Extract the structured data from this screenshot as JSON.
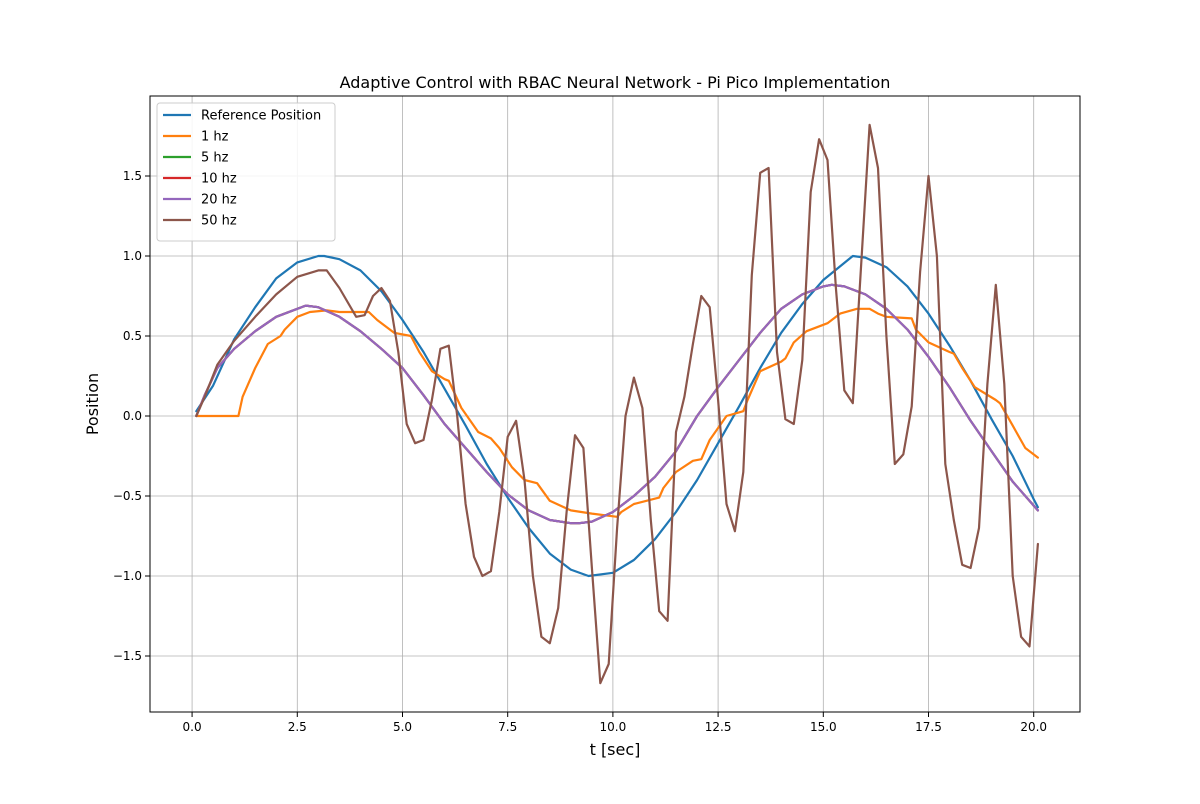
{
  "chart_data": {
    "type": "line",
    "title": "Adaptive Control with RBAC Neural Network - Pi Pico Implementation",
    "xlabel": "t [sec]",
    "ylabel": "Position",
    "xlim": [
      -1.0,
      21.1
    ],
    "ylim": [
      -1.85,
      2.0
    ],
    "xticks": [
      0.0,
      2.5,
      5.0,
      7.5,
      10.0,
      12.5,
      15.0,
      17.5,
      20.0
    ],
    "xtick_labels": [
      "0.0",
      "2.5",
      "5.0",
      "7.5",
      "10.0",
      "12.5",
      "15.0",
      "17.5",
      "20.0"
    ],
    "yticks": [
      -1.5,
      -1.0,
      -0.5,
      0.0,
      0.5,
      1.0,
      1.5
    ],
    "ytick_labels": [
      "−1.5",
      "−1.0",
      "−0.5",
      "0.0",
      "0.5",
      "1.0",
      "1.5"
    ],
    "grid": true,
    "legend": "upper-left",
    "series": [
      {
        "name": "Reference Position",
        "color": "#1f77b4",
        "x": [
          0.1,
          0.5,
          1.0,
          1.5,
          2.0,
          2.5,
          3.0,
          3.14,
          3.5,
          4.0,
          4.5,
          5.0,
          5.5,
          6.0,
          6.5,
          7.0,
          7.5,
          8.0,
          8.5,
          9.0,
          9.42,
          10.0,
          10.5,
          11.0,
          11.5,
          12.0,
          12.5,
          13.0,
          13.5,
          14.0,
          14.5,
          15.0,
          15.7,
          16.0,
          16.5,
          17.0,
          17.5,
          18.0,
          18.5,
          19.0,
          19.5,
          20.0,
          20.1
        ],
        "y": [
          0.03,
          0.19,
          0.48,
          0.68,
          0.86,
          0.96,
          1.0,
          1.0,
          0.98,
          0.91,
          0.78,
          0.6,
          0.4,
          0.17,
          -0.06,
          -0.3,
          -0.51,
          -0.7,
          -0.86,
          -0.96,
          -1.0,
          -0.98,
          -0.9,
          -0.77,
          -0.6,
          -0.4,
          -0.17,
          0.06,
          0.3,
          0.52,
          0.7,
          0.85,
          1.0,
          0.99,
          0.93,
          0.81,
          0.64,
          0.44,
          0.22,
          -0.02,
          -0.25,
          -0.52,
          -0.57
        ]
      },
      {
        "name": "1 hz",
        "color": "#ff7f0e",
        "x": [
          0.1,
          1.1,
          1.2,
          1.5,
          1.8,
          2.1,
          2.2,
          2.5,
          2.8,
          3.2,
          3.5,
          4.0,
          4.2,
          4.4,
          4.8,
          5.2,
          5.4,
          5.7,
          6.0,
          6.1,
          6.4,
          6.8,
          7.1,
          7.3,
          7.6,
          7.9,
          8.2,
          8.5,
          9.0,
          9.5,
          10.1,
          10.2,
          10.5,
          11.1,
          11.2,
          11.5,
          11.9,
          12.1,
          12.3,
          12.7,
          13.1,
          13.2,
          13.5,
          14.0,
          14.1,
          14.3,
          14.6,
          15.0,
          15.1,
          15.4,
          15.8,
          16.1,
          16.3,
          16.5,
          17.1,
          17.2,
          17.5,
          18.0,
          18.1,
          18.3,
          18.6,
          19.1,
          19.2,
          19.5,
          19.8,
          20.1
        ],
        "y": [
          0.0,
          0.0,
          0.12,
          0.3,
          0.45,
          0.5,
          0.54,
          0.62,
          0.65,
          0.66,
          0.65,
          0.65,
          0.65,
          0.6,
          0.52,
          0.5,
          0.4,
          0.28,
          0.23,
          0.22,
          0.05,
          -0.1,
          -0.14,
          -0.2,
          -0.32,
          -0.4,
          -0.42,
          -0.53,
          -0.59,
          -0.61,
          -0.63,
          -0.6,
          -0.55,
          -0.51,
          -0.45,
          -0.35,
          -0.28,
          -0.27,
          -0.15,
          0.0,
          0.03,
          0.1,
          0.28,
          0.34,
          0.36,
          0.46,
          0.53,
          0.57,
          0.58,
          0.64,
          0.67,
          0.67,
          0.64,
          0.62,
          0.61,
          0.54,
          0.46,
          0.4,
          0.39,
          0.3,
          0.18,
          0.1,
          0.08,
          -0.06,
          -0.2,
          -0.26
        ]
      },
      {
        "name": "5 hz",
        "color": "#2ca02c",
        "x": [
          0.1,
          0.3,
          0.6,
          1.0,
          1.5,
          2.0,
          2.7,
          3.0,
          3.5,
          4.0,
          4.5,
          5.0,
          5.5,
          6.0,
          6.5,
          7.0,
          7.5,
          8.0,
          8.5,
          9.0,
          9.2,
          9.5,
          10.0,
          10.5,
          11.0,
          11.5,
          12.0,
          12.5,
          13.0,
          13.5,
          14.0,
          14.5,
          15.0,
          15.2,
          15.5,
          16.0,
          16.5,
          17.0,
          17.5,
          18.0,
          18.5,
          19.0,
          19.5,
          20.1
        ],
        "y": [
          0.0,
          0.13,
          0.3,
          0.42,
          0.53,
          0.62,
          0.69,
          0.68,
          0.62,
          0.53,
          0.42,
          0.3,
          0.13,
          -0.05,
          -0.2,
          -0.35,
          -0.49,
          -0.59,
          -0.65,
          -0.67,
          -0.67,
          -0.66,
          -0.6,
          -0.5,
          -0.38,
          -0.22,
          0.0,
          0.18,
          0.35,
          0.52,
          0.67,
          0.76,
          0.81,
          0.82,
          0.81,
          0.76,
          0.67,
          0.54,
          0.37,
          0.18,
          -0.03,
          -0.22,
          -0.41,
          -0.59
        ]
      },
      {
        "name": "10 hz",
        "color": "#d62728",
        "x": [
          0.1,
          0.3,
          0.6,
          1.0,
          1.5,
          2.0,
          2.7,
          3.0,
          3.5,
          4.0,
          4.5,
          5.0,
          5.5,
          6.0,
          6.5,
          7.0,
          7.5,
          8.0,
          8.5,
          9.0,
          9.2,
          9.5,
          10.0,
          10.5,
          11.0,
          11.5,
          12.0,
          12.5,
          13.0,
          13.5,
          14.0,
          14.5,
          15.0,
          15.2,
          15.5,
          16.0,
          16.5,
          17.0,
          17.5,
          18.0,
          18.5,
          19.0,
          19.5,
          20.1
        ],
        "y": [
          0.0,
          0.13,
          0.3,
          0.42,
          0.53,
          0.62,
          0.69,
          0.68,
          0.62,
          0.53,
          0.42,
          0.3,
          0.13,
          -0.05,
          -0.2,
          -0.35,
          -0.49,
          -0.59,
          -0.65,
          -0.67,
          -0.67,
          -0.66,
          -0.6,
          -0.5,
          -0.38,
          -0.22,
          0.0,
          0.18,
          0.35,
          0.52,
          0.67,
          0.76,
          0.81,
          0.82,
          0.81,
          0.76,
          0.67,
          0.54,
          0.37,
          0.18,
          -0.03,
          -0.22,
          -0.41,
          -0.59
        ]
      },
      {
        "name": "20 hz",
        "color": "#9467bd",
        "x": [
          0.1,
          0.3,
          0.6,
          1.0,
          1.5,
          2.0,
          2.7,
          3.0,
          3.5,
          4.0,
          4.5,
          5.0,
          5.5,
          6.0,
          6.5,
          7.0,
          7.5,
          8.0,
          8.5,
          9.0,
          9.2,
          9.5,
          10.0,
          10.5,
          11.0,
          11.5,
          12.0,
          12.5,
          13.0,
          13.5,
          14.0,
          14.5,
          15.0,
          15.2,
          15.5,
          16.0,
          16.5,
          17.0,
          17.5,
          18.0,
          18.5,
          19.0,
          19.5,
          20.1
        ],
        "y": [
          0.0,
          0.13,
          0.3,
          0.42,
          0.53,
          0.62,
          0.69,
          0.68,
          0.62,
          0.53,
          0.42,
          0.3,
          0.13,
          -0.05,
          -0.2,
          -0.35,
          -0.49,
          -0.59,
          -0.65,
          -0.67,
          -0.67,
          -0.66,
          -0.6,
          -0.5,
          -0.38,
          -0.22,
          0.0,
          0.18,
          0.35,
          0.52,
          0.67,
          0.76,
          0.81,
          0.82,
          0.81,
          0.76,
          0.67,
          0.54,
          0.37,
          0.18,
          -0.03,
          -0.22,
          -0.41,
          -0.59
        ]
      },
      {
        "name": "50 hz",
        "color": "#8c564b",
        "x": [
          0.1,
          0.3,
          0.6,
          1.0,
          1.5,
          2.0,
          2.5,
          3.0,
          3.2,
          3.5,
          3.9,
          4.1,
          4.3,
          4.5,
          4.7,
          4.9,
          5.1,
          5.3,
          5.5,
          5.7,
          5.9,
          6.1,
          6.3,
          6.5,
          6.7,
          6.9,
          7.1,
          7.3,
          7.5,
          7.7,
          7.9,
          8.1,
          8.3,
          8.5,
          8.7,
          8.9,
          9.1,
          9.3,
          9.5,
          9.7,
          9.9,
          10.1,
          10.3,
          10.5,
          10.7,
          10.9,
          11.1,
          11.3,
          11.5,
          11.7,
          11.9,
          12.1,
          12.3,
          12.5,
          12.7,
          12.9,
          13.1,
          13.3,
          13.5,
          13.7,
          13.9,
          14.1,
          14.3,
          14.5,
          14.7,
          14.9,
          15.1,
          15.3,
          15.5,
          15.7,
          15.9,
          16.1,
          16.3,
          16.5,
          16.7,
          16.9,
          17.1,
          17.3,
          17.5,
          17.7,
          17.9,
          18.1,
          18.3,
          18.5,
          18.7,
          18.9,
          19.1,
          19.3,
          19.5,
          19.7,
          19.9,
          20.1
        ],
        "y": [
          0.0,
          0.12,
          0.32,
          0.47,
          0.62,
          0.76,
          0.87,
          0.91,
          0.91,
          0.8,
          0.62,
          0.63,
          0.75,
          0.8,
          0.72,
          0.4,
          -0.05,
          -0.17,
          -0.15,
          0.1,
          0.42,
          0.44,
          0.0,
          -0.55,
          -0.88,
          -1.0,
          -0.97,
          -0.6,
          -0.13,
          -0.03,
          -0.4,
          -1.0,
          -1.38,
          -1.42,
          -1.2,
          -0.6,
          -0.12,
          -0.2,
          -0.95,
          -1.67,
          -1.55,
          -0.7,
          0.0,
          0.24,
          0.05,
          -0.65,
          -1.22,
          -1.28,
          -0.1,
          0.12,
          0.45,
          0.75,
          0.68,
          0.1,
          -0.55,
          -0.72,
          -0.35,
          0.88,
          1.52,
          1.55,
          0.4,
          -0.02,
          -0.05,
          0.35,
          1.4,
          1.73,
          1.6,
          0.8,
          0.16,
          0.08,
          0.95,
          1.82,
          1.55,
          0.5,
          -0.3,
          -0.24,
          0.06,
          0.9,
          1.5,
          1.0,
          -0.3,
          -0.65,
          -0.93,
          -0.95,
          -0.7,
          0.2,
          0.82,
          0.2,
          -1.0,
          -1.38,
          -1.44,
          -0.8
        ]
      }
    ]
  }
}
